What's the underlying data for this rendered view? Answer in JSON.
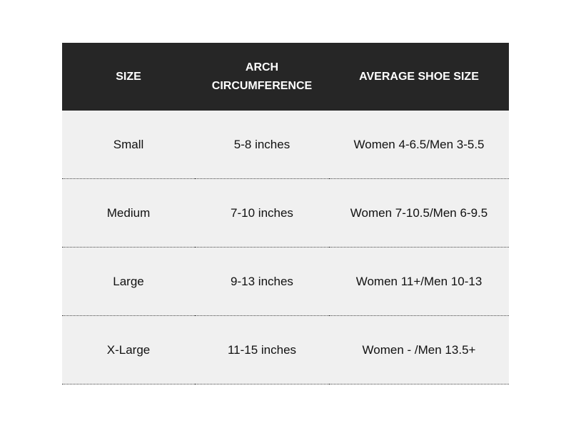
{
  "table": {
    "header": [
      "SIZE",
      "ARCH CIRCUMFERENCE",
      "AVERAGE SHOE SIZE"
    ],
    "rows": [
      [
        "Small",
        "5-8 inches",
        "Women 4-6.5/Men 3-5.5"
      ],
      [
        "Medium",
        "7-10 inches",
        "Women 7-10.5/Men 6-9.5"
      ],
      [
        "Large",
        "9-13 inches",
        "Women 11+/Men 10-13"
      ],
      [
        "X-Large",
        "11-15 inches",
        "Women - /Men 13.5+"
      ]
    ]
  }
}
